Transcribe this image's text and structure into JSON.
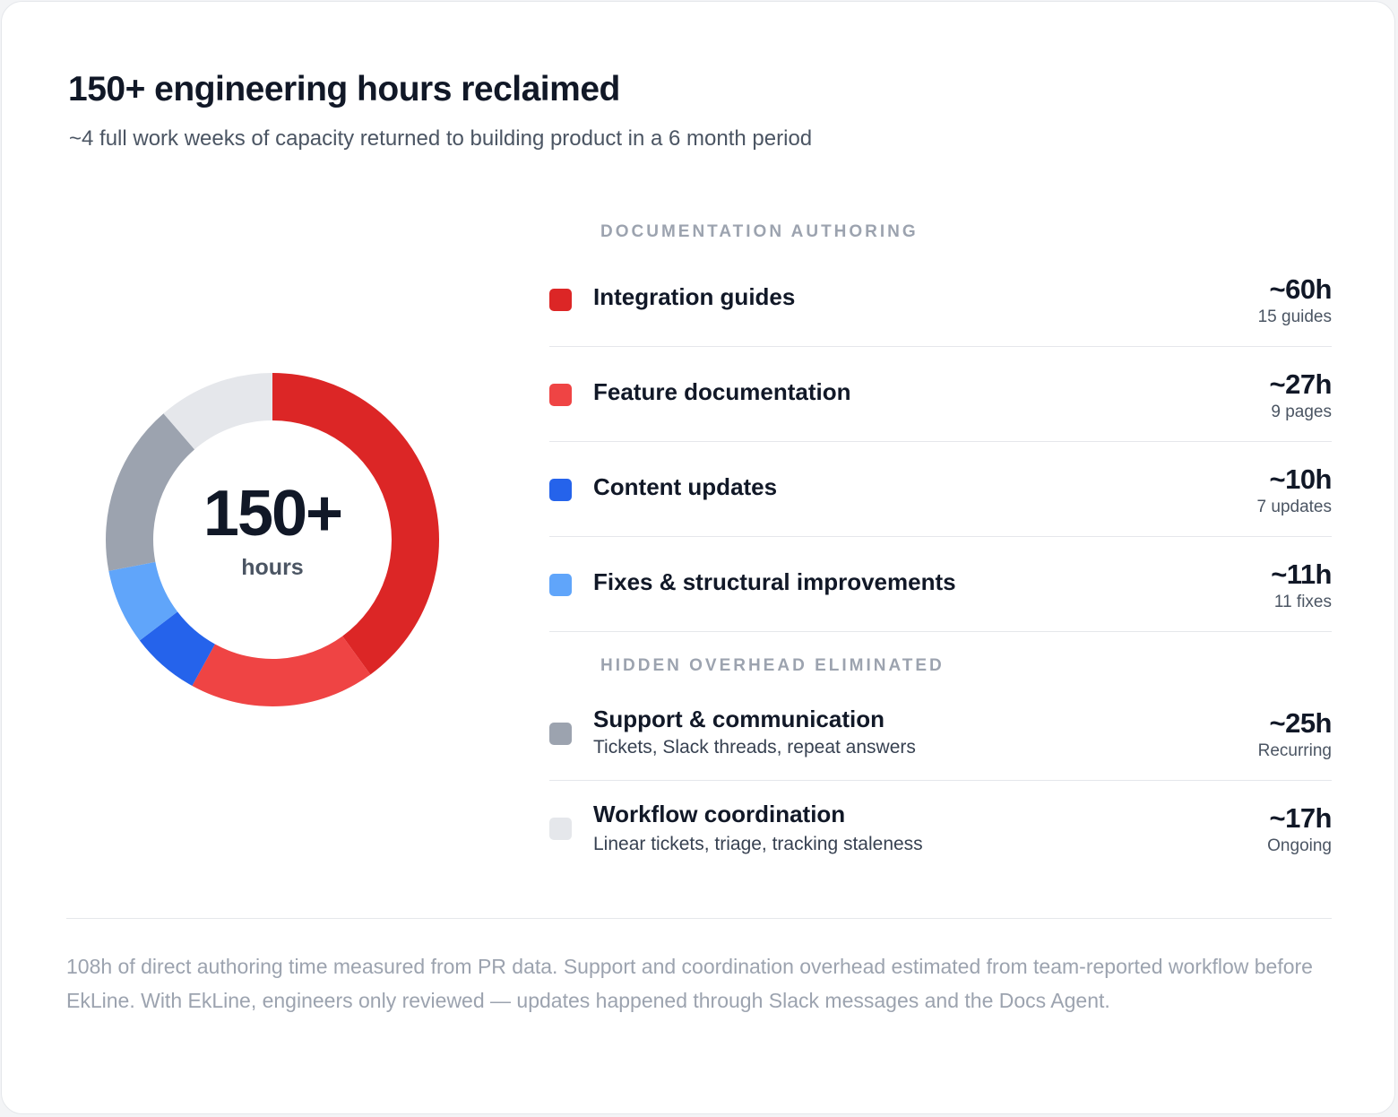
{
  "header": {
    "title": "150+ engineering hours reclaimed",
    "subtitle": "~4 full work weeks of capacity returned to building product in a 6 month period"
  },
  "donut": {
    "center_value": "150+",
    "center_unit": "hours"
  },
  "sections": {
    "authoring": "DOCUMENTATION AUTHORING",
    "overhead": "HIDDEN OVERHEAD ELIMINATED"
  },
  "items": [
    {
      "label": "Integration guides",
      "value": "~60h",
      "sub": "15 guides",
      "color": "#dc2626"
    },
    {
      "label": "Feature documentation",
      "value": "~27h",
      "sub": "9 pages",
      "color": "#ef4444"
    },
    {
      "label": "Content updates",
      "value": "~10h",
      "sub": "7 updates",
      "color": "#2563eb"
    },
    {
      "label": "Fixes & structural improvements",
      "value": "~11h",
      "sub": "11 fixes",
      "color": "#60a5fa"
    },
    {
      "label": "Support & communication",
      "desc": "Tickets, Slack threads, repeat answers",
      "value": "~25h",
      "sub": "Recurring",
      "color": "#9ca3af"
    },
    {
      "label": "Workflow coordination",
      "desc": "Linear tickets, triage, tracking staleness",
      "value": "~17h",
      "sub": "Ongoing",
      "color": "#e5e7eb"
    }
  ],
  "chart_data": {
    "type": "pie",
    "title": "150+ engineering hours reclaimed",
    "center_label": "150+ hours",
    "categories": [
      "Integration guides",
      "Feature documentation",
      "Content updates",
      "Fixes & structural improvements",
      "Support & communication",
      "Workflow coordination"
    ],
    "values": [
      60,
      27,
      10,
      11,
      25,
      17
    ],
    "colors": [
      "#dc2626",
      "#ef4444",
      "#2563eb",
      "#60a5fa",
      "#9ca3af",
      "#e5e7eb"
    ],
    "start_angle_deg": -90,
    "direction": "clockwise"
  },
  "footnote": "108h of direct authoring time measured from PR data. Support and coordination overhead estimated from team-reported workflow before EkLine. With EkLine, engineers only reviewed — updates happened through Slack messages and the Docs Agent."
}
